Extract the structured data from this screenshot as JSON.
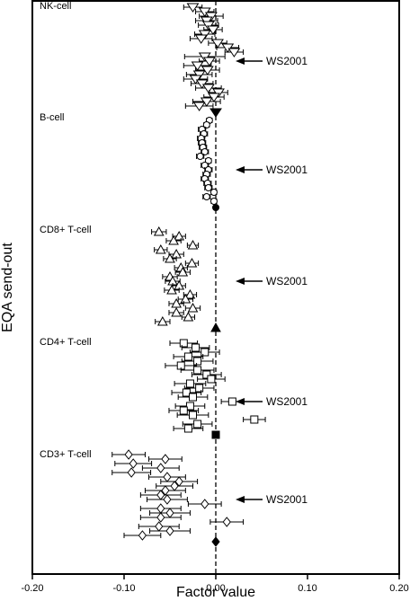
{
  "chart_data": {
    "type": "scatter",
    "xlabel": "Factor value",
    "ylabel": "EQA send-out",
    "xlim": [
      -0.2,
      0.2
    ],
    "xticks": [
      "-0.20",
      "-0.10",
      "0.00",
      "0.10",
      "0.20"
    ],
    "xtick_values": [
      -0.2,
      -0.1,
      0.0,
      0.1,
      0.2
    ],
    "grid": false,
    "reference_line_x": 0,
    "annotation_text": "WS2001",
    "groups": [
      {
        "name": "NK-cell",
        "marker": "triangle-down",
        "arrow_at": 12,
        "points": [
          {
            "x": -0.025,
            "err": 0.01
          },
          {
            "x": -0.012,
            "err": 0.01
          },
          {
            "x": -0.005,
            "err": 0.013
          },
          {
            "x": -0.01,
            "err": 0.012
          },
          {
            "x": -0.008,
            "err": 0.011
          },
          {
            "x": -0.003,
            "err": 0.01
          },
          {
            "x": -0.012,
            "err": 0.011
          },
          {
            "x": -0.016,
            "err": 0.012
          },
          {
            "x": 0.002,
            "err": 0.01
          },
          {
            "x": 0.013,
            "err": 0.012
          },
          {
            "x": 0.02,
            "err": 0.01
          },
          {
            "x": -0.012,
            "err": 0.022
          },
          {
            "x": -0.007,
            "err": 0.011
          },
          {
            "x": -0.02,
            "err": 0.015
          },
          {
            "x": -0.009,
            "err": 0.013
          },
          {
            "x": -0.018,
            "err": 0.014
          },
          {
            "x": -0.022,
            "err": 0.013
          },
          {
            "x": -0.015,
            "err": 0.012
          },
          {
            "x": -0.008,
            "err": 0.014
          },
          {
            "x": 0.003,
            "err": 0.01
          },
          {
            "x": -0.002,
            "err": 0.011
          },
          {
            "x": -0.01,
            "err": 0.015
          },
          {
            "x": -0.018,
            "err": 0.015
          }
        ],
        "reference": {
          "x": 0.0
        }
      },
      {
        "name": "B-cell",
        "marker": "circle",
        "arrow_at": 11,
        "points": [
          {
            "x": -0.007,
            "err": 0.003
          },
          {
            "x": -0.01,
            "err": 0.003
          },
          {
            "x": -0.015,
            "err": 0.004
          },
          {
            "x": -0.013,
            "err": 0.004
          },
          {
            "x": -0.016,
            "err": 0.004
          },
          {
            "x": -0.015,
            "err": 0.004
          },
          {
            "x": -0.014,
            "err": 0.004
          },
          {
            "x": -0.012,
            "err": 0.004
          },
          {
            "x": -0.017,
            "err": 0.004
          },
          {
            "x": -0.008,
            "err": 0.003
          },
          {
            "x": -0.012,
            "err": 0.004
          },
          {
            "x": -0.008,
            "err": 0.004
          },
          {
            "x": -0.01,
            "err": 0.004
          },
          {
            "x": -0.012,
            "err": 0.004
          },
          {
            "x": -0.009,
            "err": 0.004
          },
          {
            "x": -0.008,
            "err": 0.004
          },
          {
            "x": -0.002,
            "err": 0.003
          },
          {
            "x": -0.01,
            "err": 0.004
          },
          {
            "x": -0.002,
            "err": 0.003
          }
        ],
        "reference": {
          "x": 0.0
        }
      },
      {
        "name": "CD8+ T-cell",
        "marker": "triangle-up",
        "arrow_at": 11,
        "points": [
          {
            "x": -0.062,
            "err": 0.008
          },
          {
            "x": -0.04,
            "err": 0.007
          },
          {
            "x": -0.046,
            "err": 0.008
          },
          {
            "x": -0.025,
            "err": 0.006
          },
          {
            "x": -0.06,
            "err": 0.007
          },
          {
            "x": -0.043,
            "err": 0.008
          },
          {
            "x": -0.05,
            "err": 0.007
          },
          {
            "x": -0.026,
            "err": 0.007
          },
          {
            "x": -0.038,
            "err": 0.007
          },
          {
            "x": -0.036,
            "err": 0.008
          },
          {
            "x": -0.05,
            "err": 0.008
          },
          {
            "x": -0.047,
            "err": 0.008
          },
          {
            "x": -0.04,
            "err": 0.007
          },
          {
            "x": -0.048,
            "err": 0.008
          },
          {
            "x": -0.028,
            "err": 0.007
          },
          {
            "x": -0.033,
            "err": 0.008
          },
          {
            "x": -0.043,
            "err": 0.008
          },
          {
            "x": -0.025,
            "err": 0.008
          },
          {
            "x": -0.043,
            "err": 0.008
          },
          {
            "x": -0.03,
            "err": 0.007
          },
          {
            "x": -0.058,
            "err": 0.008
          }
        ],
        "reference": {
          "x": 0.0
        }
      },
      {
        "name": "CD4+ T-cell",
        "marker": "square",
        "arrow_at": 13,
        "points": [
          {
            "x": -0.035,
            "err": 0.015
          },
          {
            "x": -0.022,
            "err": 0.015
          },
          {
            "x": -0.012,
            "err": 0.016
          },
          {
            "x": -0.03,
            "err": 0.016
          },
          {
            "x": -0.02,
            "err": 0.017
          },
          {
            "x": -0.038,
            "err": 0.017
          },
          {
            "x": -0.02,
            "err": 0.018
          },
          {
            "x": -0.01,
            "err": 0.016
          },
          {
            "x": -0.005,
            "err": 0.015
          },
          {
            "x": -0.028,
            "err": 0.017
          },
          {
            "x": -0.018,
            "err": 0.016
          },
          {
            "x": -0.032,
            "err": 0.016
          },
          {
            "x": -0.025,
            "err": 0.016
          },
          {
            "x": 0.018,
            "err": 0.012
          },
          {
            "x": -0.028,
            "err": 0.016
          },
          {
            "x": -0.035,
            "err": 0.016
          },
          {
            "x": -0.025,
            "err": 0.017
          },
          {
            "x": 0.042,
            "err": 0.012
          },
          {
            "x": -0.02,
            "err": 0.016
          },
          {
            "x": -0.03,
            "err": 0.016
          }
        ],
        "reference": {
          "x": 0.0
        }
      },
      {
        "name": "CD3+ T-cell",
        "marker": "diamond",
        "arrow_at": 10,
        "points": [
          {
            "x": -0.095,
            "err": 0.018
          },
          {
            "x": -0.055,
            "err": 0.018
          },
          {
            "x": -0.09,
            "err": 0.02
          },
          {
            "x": -0.06,
            "err": 0.02
          },
          {
            "x": -0.092,
            "err": 0.021
          },
          {
            "x": -0.053,
            "err": 0.02
          },
          {
            "x": -0.04,
            "err": 0.02
          },
          {
            "x": -0.045,
            "err": 0.02
          },
          {
            "x": -0.055,
            "err": 0.022
          },
          {
            "x": -0.06,
            "err": 0.022
          },
          {
            "x": -0.053,
            "err": 0.022
          },
          {
            "x": -0.012,
            "err": 0.018
          },
          {
            "x": -0.06,
            "err": 0.022
          },
          {
            "x": -0.05,
            "err": 0.022
          },
          {
            "x": -0.06,
            "err": 0.022
          },
          {
            "x": 0.012,
            "err": 0.018
          },
          {
            "x": -0.062,
            "err": 0.022
          },
          {
            "x": -0.05,
            "err": 0.022
          },
          {
            "x": -0.08,
            "err": 0.02
          }
        ],
        "reference": {
          "x": 0.0
        }
      }
    ]
  }
}
